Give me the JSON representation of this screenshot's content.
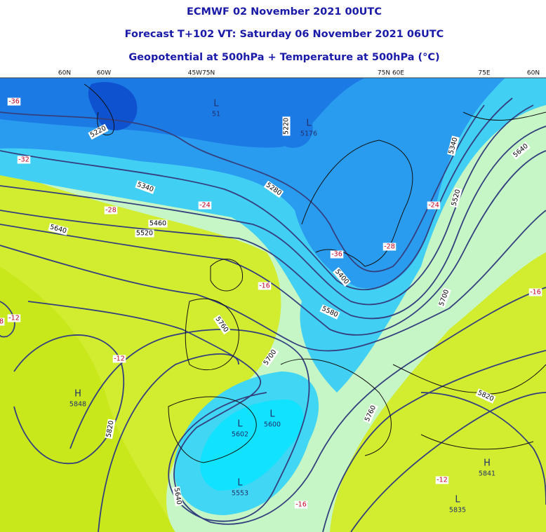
{
  "header": {
    "lines": [
      "ECMWF 02 November 2021 00UTC",
      "Forecast T+102 VT: Saturday 06 November 2021 06UTC",
      "Geopotential at 500hPa + Temperature at 500hPa (°C)"
    ]
  },
  "graticule_labels": [
    "60N",
    "60W",
    "45W75N",
    "75N 60E",
    "75E",
    "60N"
  ],
  "contour_labels": [
    "5220",
    "5220",
    "5340",
    "5280",
    "5460",
    "5520",
    "5640",
    "5400",
    "5580",
    "5760",
    "5700",
    "5820",
    "5640",
    "5760",
    "5820",
    "5700",
    "5520",
    "5340",
    "5640"
  ],
  "temperature_labels": [
    "-36",
    "-32",
    "-28",
    "-24",
    "-16",
    "-12",
    "8",
    "-12",
    "-24",
    "-28",
    "-36",
    "-16",
    "-12",
    "-16"
  ],
  "pressure_centers": [
    {
      "symbol": "H",
      "value": "5848"
    },
    {
      "symbol": "L",
      "value": "5176"
    },
    {
      "symbol": "L",
      "value": "51"
    },
    {
      "symbol": "L",
      "value": "5600"
    },
    {
      "symbol": "L",
      "value": "5602"
    },
    {
      "symbol": "L",
      "value": "5553"
    },
    {
      "symbol": "H",
      "value": "5841"
    },
    {
      "symbol": "L",
      "value": "5835"
    }
  ]
}
